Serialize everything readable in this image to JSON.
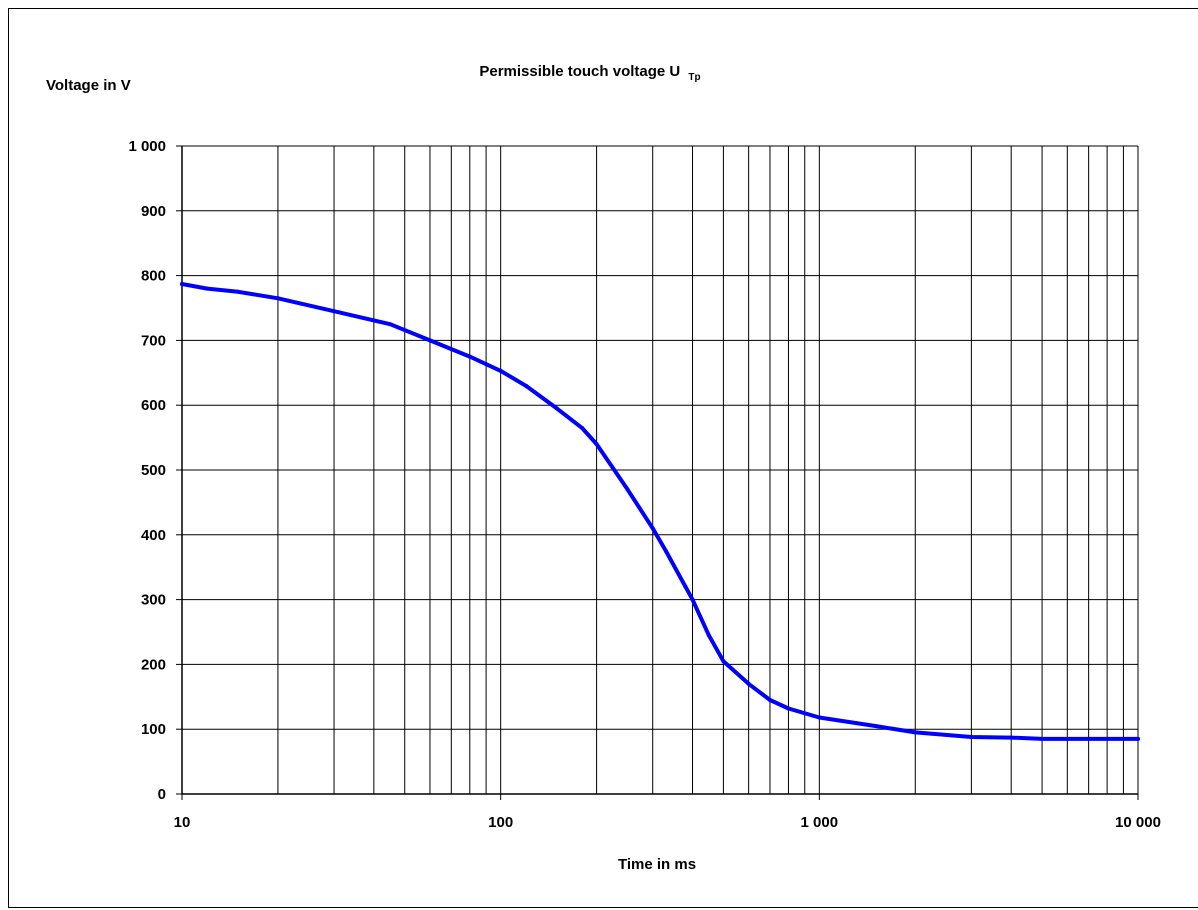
{
  "chart_data": {
    "type": "line",
    "title": "Permissible touch voltage U",
    "title_subscript": "Tp",
    "ylabel": "Voltage in V",
    "xlabel": "Time in ms",
    "x_scale": "log",
    "xlim": [
      10,
      10000
    ],
    "ylim": [
      0,
      1000
    ],
    "grid": true,
    "x_tick_labels": [
      {
        "value": 10,
        "label": "10"
      },
      {
        "value": 100,
        "label": "100"
      },
      {
        "value": 1000,
        "label": "1 000"
      },
      {
        "value": 10000,
        "label": "10 000"
      }
    ],
    "y_tick_labels": [
      {
        "value": 0,
        "label": "0"
      },
      {
        "value": 100,
        "label": "100"
      },
      {
        "value": 200,
        "label": "200"
      },
      {
        "value": 300,
        "label": "300"
      },
      {
        "value": 400,
        "label": "400"
      },
      {
        "value": 500,
        "label": "500"
      },
      {
        "value": 600,
        "label": "600"
      },
      {
        "value": 700,
        "label": "700"
      },
      {
        "value": 800,
        "label": "800"
      },
      {
        "value": 900,
        "label": "900"
      },
      {
        "value": 1000,
        "label": "1 000"
      }
    ],
    "series": [
      {
        "color": "#0000ff",
        "x": [
          10,
          12,
          15,
          20,
          30,
          45,
          60,
          80,
          100,
          120,
          150,
          180,
          200,
          250,
          300,
          330,
          380,
          400,
          450,
          500,
          600,
          700,
          800,
          1000,
          1500,
          2000,
          3000,
          4000,
          5000,
          7000,
          10000
        ],
        "y": [
          787,
          780,
          775,
          765,
          745,
          725,
          700,
          675,
          653,
          630,
          595,
          565,
          540,
          470,
          410,
          375,
          320,
          300,
          245,
          205,
          170,
          145,
          132,
          118,
          105,
          95,
          88,
          87,
          85,
          85,
          85
        ]
      }
    ]
  }
}
